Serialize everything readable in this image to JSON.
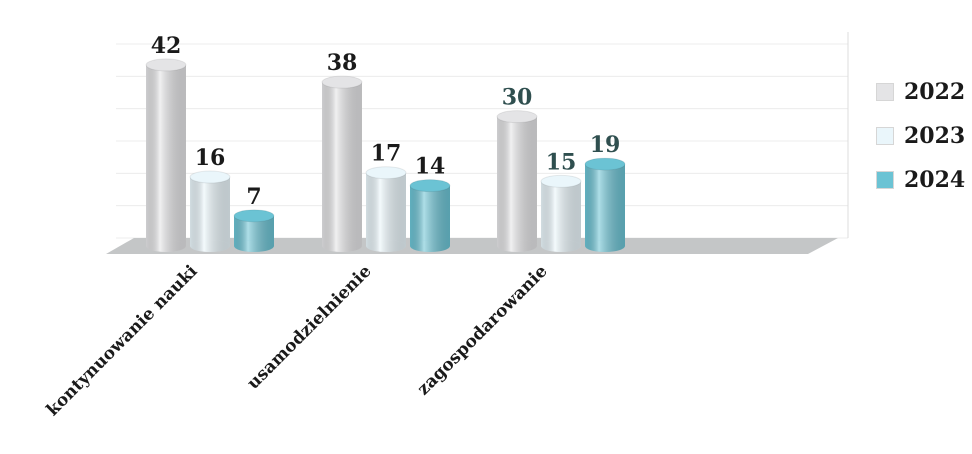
{
  "chart_data": {
    "type": "bar",
    "categories": [
      "kontynuowanie nauki",
      "usamodzielnienie",
      "zagospodarowanie"
    ],
    "series": [
      {
        "name": "2022",
        "values": [
          42,
          38,
          30
        ],
        "color": "#e4e4e6"
      },
      {
        "name": "2023",
        "values": [
          16,
          17,
          15
        ],
        "color": "#eaf6fb"
      },
      {
        "name": "2024",
        "values": [
          7,
          14,
          19
        ],
        "color": "#6bc3d4"
      }
    ],
    "data_label_colors": [
      "#1a1a1a",
      "#1a1a1a",
      "#2f4f4f"
    ],
    "ylim": [
      0,
      45
    ],
    "grid": true,
    "legend_position": "right",
    "style": "3d-cylinder"
  }
}
